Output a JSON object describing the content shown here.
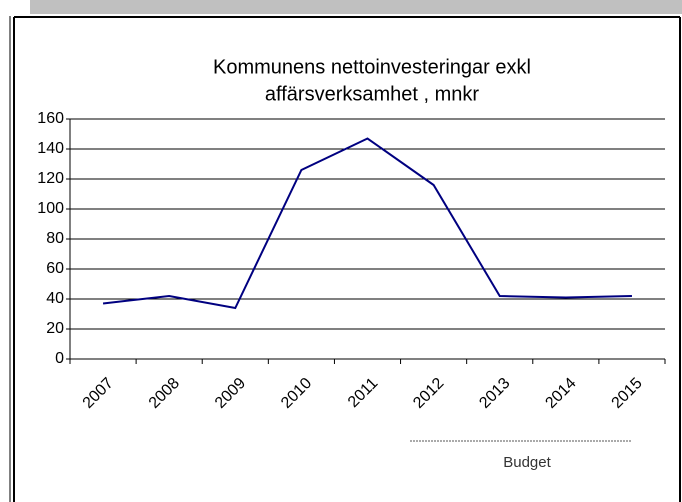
{
  "chart_data": {
    "type": "line",
    "title": [
      "Kommunens nettoinvesteringar exkl",
      "affärsverksamhet , mnkr"
    ],
    "categories": [
      "2007",
      "2008",
      "2009",
      "2010",
      "2011",
      "2012",
      "2013",
      "2014",
      "2015"
    ],
    "series": [
      {
        "name": "Nettoinvesteringar",
        "color": "#000080",
        "values": [
          37,
          42,
          34,
          126,
          147,
          116,
          42,
          41,
          42
        ]
      }
    ],
    "ylim": [
      0,
      160
    ],
    "yticks": [
      0,
      20,
      40,
      60,
      80,
      100,
      120,
      140,
      160
    ],
    "grid": true,
    "annotation": "Budget"
  }
}
